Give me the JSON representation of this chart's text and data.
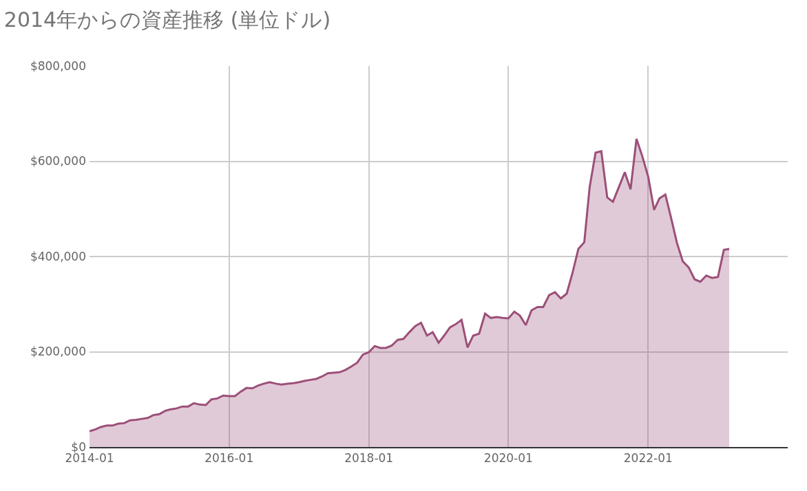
{
  "chart_data": {
    "type": "area",
    "title": "2014年からの資産推移 (単位ドル)",
    "x": [
      "2014-01",
      "2014-02",
      "2014-03",
      "2014-04",
      "2014-05",
      "2014-06",
      "2014-07",
      "2014-08",
      "2014-09",
      "2014-10",
      "2014-11",
      "2014-12",
      "2015-01",
      "2015-02",
      "2015-03",
      "2015-04",
      "2015-05",
      "2015-06",
      "2015-07",
      "2015-08",
      "2015-09",
      "2015-10",
      "2015-11",
      "2015-12",
      "2016-01",
      "2016-02",
      "2016-03",
      "2016-04",
      "2016-05",
      "2016-06",
      "2016-07",
      "2016-08",
      "2016-09",
      "2016-10",
      "2016-11",
      "2016-12",
      "2017-01",
      "2017-02",
      "2017-03",
      "2017-04",
      "2017-05",
      "2017-06",
      "2017-07",
      "2017-08",
      "2017-09",
      "2017-10",
      "2017-11",
      "2017-12",
      "2018-01",
      "2018-02",
      "2018-03",
      "2018-04",
      "2018-05",
      "2018-06",
      "2018-07",
      "2018-08",
      "2018-09",
      "2018-10",
      "2018-11",
      "2018-12",
      "2019-01",
      "2019-02",
      "2019-03",
      "2019-04",
      "2019-05",
      "2019-06",
      "2019-07",
      "2019-08",
      "2019-09",
      "2019-10",
      "2019-11",
      "2019-12",
      "2020-01",
      "2020-02",
      "2020-03",
      "2020-04",
      "2020-05",
      "2020-06",
      "2020-07",
      "2020-08",
      "2020-09",
      "2020-10",
      "2020-11",
      "2020-12",
      "2021-01",
      "2021-02",
      "2021-03",
      "2021-04",
      "2021-05",
      "2021-06",
      "2021-07",
      "2021-08",
      "2021-09",
      "2021-10",
      "2021-11",
      "2021-12",
      "2022-01",
      "2022-02",
      "2022-03",
      "2022-04",
      "2022-05",
      "2022-06",
      "2022-07",
      "2022-08",
      "2022-09",
      "2022-10",
      "2022-11",
      "2022-12",
      "2023-01",
      "2023-02",
      "2023-03"
    ],
    "series": [
      {
        "color": "#9c4f79",
        "values": [
          33000,
          37000,
          42000,
          45000,
          45000,
          49000,
          50000,
          56000,
          57000,
          59000,
          61000,
          67000,
          69000,
          76000,
          79000,
          81000,
          85000,
          85000,
          92000,
          89000,
          88000,
          100000,
          102000,
          108000,
          107000,
          107000,
          116000,
          124000,
          123000,
          129000,
          133000,
          136000,
          133000,
          131000,
          133000,
          134000,
          136000,
          139000,
          141000,
          143000,
          148000,
          155000,
          156000,
          157000,
          162000,
          169000,
          177000,
          194000,
          199000,
          212000,
          208000,
          208000,
          213000,
          225000,
          227000,
          241000,
          254000,
          261000,
          234000,
          241000,
          219000,
          235000,
          251000,
          258000,
          267000,
          209000,
          234000,
          238000,
          280000,
          271000,
          273000,
          271000,
          270000,
          284000,
          276000,
          256000,
          287000,
          294000,
          294000,
          319000,
          325000,
          312000,
          322000,
          365000,
          416000,
          430000,
          546000,
          618000,
          621000,
          524000,
          515000,
          546000,
          577000,
          541000,
          647000,
          611000,
          568000,
          498000,
          522000,
          530000,
          481000,
          428000,
          390000,
          377000,
          352000,
          347000,
          360000,
          355000,
          357000,
          414000,
          416000
        ]
      }
    ],
    "xlim": [
      "2014-01",
      "2024-01"
    ],
    "xticks": [
      {
        "value": "2014-01",
        "label": "2014-01"
      },
      {
        "value": "2016-01",
        "label": "2016-01"
      },
      {
        "value": "2018-01",
        "label": "2018-01"
      },
      {
        "value": "2020-01",
        "label": "2020-01"
      },
      {
        "value": "2022-01",
        "label": "2022-01"
      }
    ],
    "ylim": [
      0,
      800000
    ],
    "yticks": [
      {
        "value": 0,
        "label": "$0"
      },
      {
        "value": 200000,
        "label": "$200,000"
      },
      {
        "value": 400000,
        "label": "$400,000"
      },
      {
        "value": 600000,
        "label": "$600,000"
      },
      {
        "value": 800000,
        "label": "$800,000"
      }
    ],
    "grid": true
  }
}
